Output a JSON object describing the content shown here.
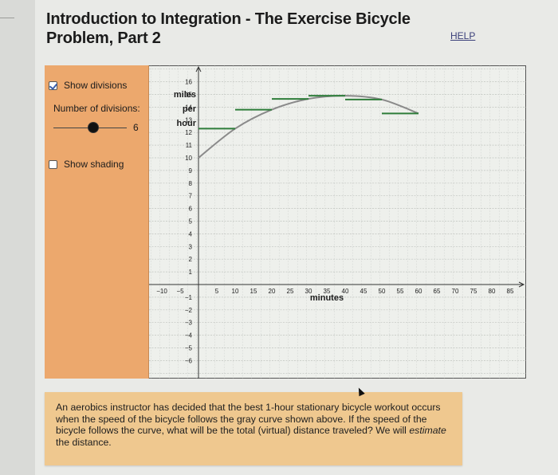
{
  "page": {
    "title": "Introduction to Integration - The Exercise Bicycle Problem, Part 2",
    "help_link": "HELP"
  },
  "controls": {
    "show_divisions": {
      "label": "Show divisions",
      "checked": true
    },
    "num_divisions": {
      "label": "Number of divisions:",
      "value": "6",
      "min": 1,
      "max": 12
    },
    "show_shading": {
      "label": "Show shading",
      "checked": false
    }
  },
  "graph": {
    "y_axis_label_lines": [
      "miles",
      "per",
      "hour"
    ],
    "x_axis_label": "minutes",
    "colors": {
      "curve": "#8a8a8a",
      "steps": "#2e7d3a",
      "grid": "#b9bdb8",
      "panel": "#eca86d"
    }
  },
  "chart_data": {
    "type": "line",
    "title": "",
    "xlabel": "minutes",
    "ylabel": "miles per hour",
    "xlim": [
      -13,
      88
    ],
    "ylim": [
      -7,
      17
    ],
    "grid": true,
    "x_ticks": [
      -10,
      -5,
      5,
      10,
      15,
      20,
      25,
      30,
      35,
      40,
      45,
      50,
      55,
      60,
      65,
      70,
      75,
      80,
      85
    ],
    "y_ticks": [
      -6,
      -5,
      -4,
      -3,
      -2,
      -1,
      1,
      2,
      3,
      4,
      5,
      6,
      7,
      8,
      9,
      10,
      11,
      12,
      13,
      14,
      15,
      16
    ],
    "series": [
      {
        "name": "speed curve (gray)",
        "x": [
          0,
          10,
          20,
          30,
          40,
          50,
          60
        ],
        "values": [
          10,
          12.3,
          13.8,
          14.65,
          14.9,
          14.6,
          13.5
        ]
      },
      {
        "name": "right-endpoint divisions (green)",
        "type": "step",
        "divisions": 6,
        "intervals": [
          [
            0,
            10
          ],
          [
            10,
            20
          ],
          [
            20,
            30
          ],
          [
            30,
            40
          ],
          [
            40,
            50
          ],
          [
            50,
            60
          ]
        ],
        "values": [
          12.3,
          13.8,
          14.65,
          14.9,
          14.6,
          13.5
        ]
      }
    ]
  },
  "problem": {
    "text_before": "An aerobics instructor has decided that the best 1-hour stationary bicycle workout occurs when the speed of the bicycle follows the gray curve shown above. If the speed of the bicycle follows the curve, what will be the total (virtual) distance traveled? We will ",
    "text_emphasis": "estimate",
    "text_after": " the distance."
  }
}
